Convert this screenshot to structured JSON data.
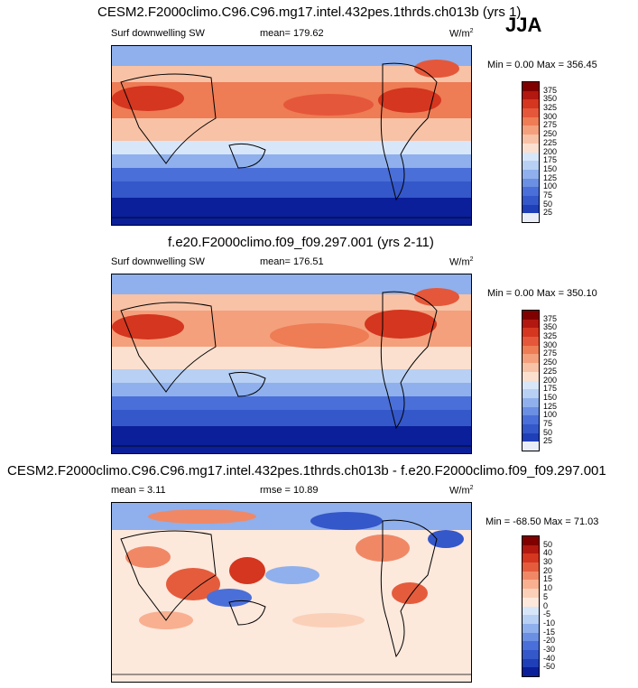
{
  "season": "JJA",
  "panels": [
    {
      "title": "CESM2.F2000climo.C96.C96.mg17.intel.432pes.1thrds.ch013b (yrs 1)",
      "left_label": "Surf downwelling SW",
      "center_label": "mean= 179.62",
      "units": "W/m",
      "units_sup": "2",
      "minmax": "Min =   0.00 Max = 356.45",
      "colorbar_labels": [
        "375",
        "350",
        "325",
        "300",
        "275",
        "250",
        "225",
        "200",
        "175",
        "150",
        "125",
        "100",
        "75",
        "50",
        "25"
      ],
      "colors": [
        "#e8edf8",
        "#1f3fb8",
        "#3457c9",
        "#4a6fd8",
        "#6a8fe3",
        "#8fb0ec",
        "#b8d0f4",
        "#d8e6fa",
        "#fbe0cf",
        "#f8c2a6",
        "#f4a07c",
        "#ee7c55",
        "#e5573a",
        "#d4361f",
        "#b2180f",
        "#800000"
      ]
    },
    {
      "title": "f.e20.F2000climo.f09_f09.297.001 (yrs 2-11)",
      "left_label": "Surf downwelling SW",
      "center_label": "mean= 176.51",
      "units": "W/m",
      "units_sup": "2",
      "minmax": "Min =   0.00 Max = 350.10",
      "colorbar_labels": [
        "375",
        "350",
        "325",
        "300",
        "275",
        "250",
        "225",
        "200",
        "175",
        "150",
        "125",
        "100",
        "75",
        "50",
        "25"
      ],
      "colors": [
        "#e8edf8",
        "#1f3fb8",
        "#3457c9",
        "#4a6fd8",
        "#6a8fe3",
        "#8fb0ec",
        "#b8d0f4",
        "#d8e6fa",
        "#fbe0cf",
        "#f8c2a6",
        "#f4a07c",
        "#ee7c55",
        "#e5573a",
        "#d4361f",
        "#b2180f",
        "#800000"
      ]
    },
    {
      "title": "CESM2.F2000climo.C96.C96.mg17.intel.432pes.1thrds.ch013b - f.e20.F2000climo.f09_f09.297.001",
      "left_label": "mean =   3.11",
      "center_label": "rmse =  10.89",
      "units": "W/m",
      "units_sup": "2",
      "minmax": "Min = -68.50 Max =  71.03",
      "colorbar_labels": [
        "50",
        "40",
        "30",
        "20",
        "15",
        "10",
        "5",
        "0",
        "-5",
        "-10",
        "-15",
        "-20",
        "-30",
        "-40",
        "-50"
      ],
      "colors": [
        "#0a1f99",
        "#1f3fb8",
        "#3457c9",
        "#4a6fd8",
        "#6a8fe3",
        "#8fb0ec",
        "#b8d0f4",
        "#d8e6fa",
        "#fde8dc",
        "#fbd0b8",
        "#f8b090",
        "#f08866",
        "#e55c3c",
        "#d4361f",
        "#b2180f",
        "#800000"
      ]
    }
  ]
}
